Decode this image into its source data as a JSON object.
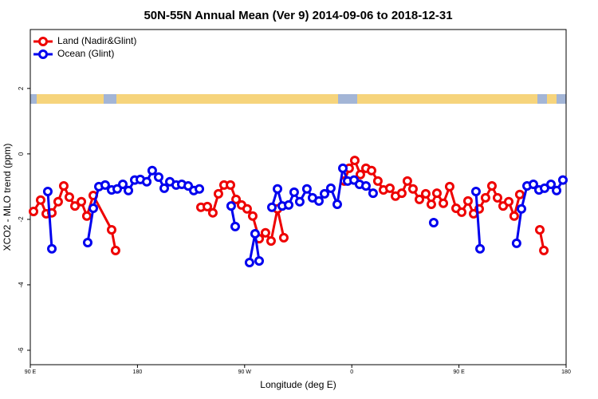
{
  "chart_data": {
    "type": "line",
    "title": "50N-55N Annual Mean (Ver 9)   2014-09-06 to 2018-12-31",
    "x_label": "Longitude (deg E)",
    "y_label": "XCO2 - MLO trend (ppm)",
    "xlim": [
      90,
      540
    ],
    "xticks": [
      {
        "value": 90,
        "label": "90 E"
      },
      180,
      {
        "value": 270,
        "label": "90 W"
      },
      {
        "value": 360,
        "label": "0"
      },
      {
        "value": 450,
        "label": "90 E"
      },
      {
        "value": 540,
        "label": "180"
      }
    ],
    "ylim": [
      -6.44,
      3.8
    ],
    "yticks": [
      2,
      0,
      -2,
      -4,
      -6
    ],
    "legend": "top-left",
    "series": [
      {
        "name": "Land (Nadir&Glint)",
        "color": "#ee0000",
        "x": [
          92.7,
          98.7,
          103.4,
          108.1,
          113.4,
          118.1,
          122.8,
          127.5,
          132.9,
          137.5,
          142.9,
          158.3,
          161.6,
          null,
          233.3,
          238.7,
          243.3,
          248.0,
          252.7,
          258.1,
          262.8,
          267.4,
          272.1,
          276.8,
          282.2,
          287.5,
          292.2,
          297.6,
          302.9,
          null,
          353.8,
          357.8,
          362.5,
          367.2,
          371.9,
          376.6,
          381.9,
          386.6,
          392.0,
          396.7,
          402.0,
          406.7,
          411.4,
          416.8,
          422.1,
          426.8,
          431.5,
          436.9,
          442.2,
          447.6,
          452.3,
          457.6,
          462.3,
          467.0,
          472.3,
          477.7,
          482.4,
          487.1,
          491.8,
          496.4,
          501.1,
          null,
          517.9,
          521.3
        ],
        "values": [
          -1.76,
          -1.41,
          -1.83,
          -1.8,
          -1.46,
          -0.98,
          -1.32,
          -1.59,
          -1.46,
          -1.9,
          -1.27,
          -2.32,
          -2.95,
          null,
          -1.63,
          -1.61,
          -1.8,
          -1.22,
          -0.95,
          -0.95,
          -1.39,
          -1.56,
          -1.68,
          -1.9,
          -2.59,
          -2.41,
          -2.66,
          -1.68,
          -2.56,
          null,
          -0.83,
          -0.44,
          -0.2,
          -0.63,
          -0.44,
          -0.51,
          -0.83,
          -1.1,
          -1.05,
          -1.29,
          -1.2,
          -0.83,
          -1.07,
          -1.39,
          -1.22,
          -1.54,
          -1.2,
          -1.51,
          -1.0,
          -1.66,
          -1.78,
          -1.44,
          -1.83,
          -1.68,
          -1.34,
          -0.98,
          -1.34,
          -1.59,
          -1.46,
          -1.9,
          -1.24,
          null,
          -2.32,
          -2.95
        ]
      },
      {
        "name": "Ocean (Glint)",
        "color": "#0000ee",
        "x": [
          104.7,
          108.1,
          null,
          138.2,
          142.9,
          147.6,
          152.9,
          158.3,
          163.0,
          167.7,
          172.4,
          177.7,
          182.4,
          187.8,
          192.4,
          197.8,
          202.5,
          207.2,
          212.5,
          217.2,
          222.6,
          227.3,
          232.0,
          null,
          258.7,
          262.1,
          null,
          274.1,
          278.8,
          282.2,
          null,
          292.9,
          297.6,
          301.6,
          307.0,
          311.6,
          316.3,
          322.3,
          327.0,
          332.4,
          337.1,
          342.4,
          347.8,
          352.5,
          356.5,
          361.9,
          366.5,
          371.9,
          377.9,
          null,
          428.8,
          null,
          464.3,
          467.7,
          null,
          498.4,
          502.5,
          507.2,
          512.5,
          517.2,
          521.9,
          527.3,
          532.0,
          537.3
        ],
        "values": [
          -1.15,
          -2.9,
          null,
          -2.71,
          -1.66,
          -1.0,
          -0.95,
          -1.1,
          -1.07,
          -0.93,
          -1.12,
          -0.8,
          -0.78,
          -0.85,
          -0.51,
          -0.71,
          -1.05,
          -0.85,
          -0.95,
          -0.93,
          -0.98,
          -1.12,
          -1.07,
          null,
          -1.59,
          -2.22,
          null,
          -3.32,
          -2.44,
          -3.27,
          null,
          -1.63,
          -1.07,
          -1.59,
          -1.56,
          -1.17,
          -1.46,
          -1.07,
          -1.34,
          -1.44,
          -1.22,
          -1.05,
          -1.54,
          -0.44,
          -0.83,
          -0.8,
          -0.93,
          -0.98,
          -1.2,
          null,
          -2.1,
          null,
          -1.15,
          -2.9,
          null,
          -2.73,
          -1.68,
          -0.98,
          -0.93,
          -1.1,
          -1.05,
          -0.93,
          -1.12,
          -0.8
        ]
      }
    ]
  }
}
